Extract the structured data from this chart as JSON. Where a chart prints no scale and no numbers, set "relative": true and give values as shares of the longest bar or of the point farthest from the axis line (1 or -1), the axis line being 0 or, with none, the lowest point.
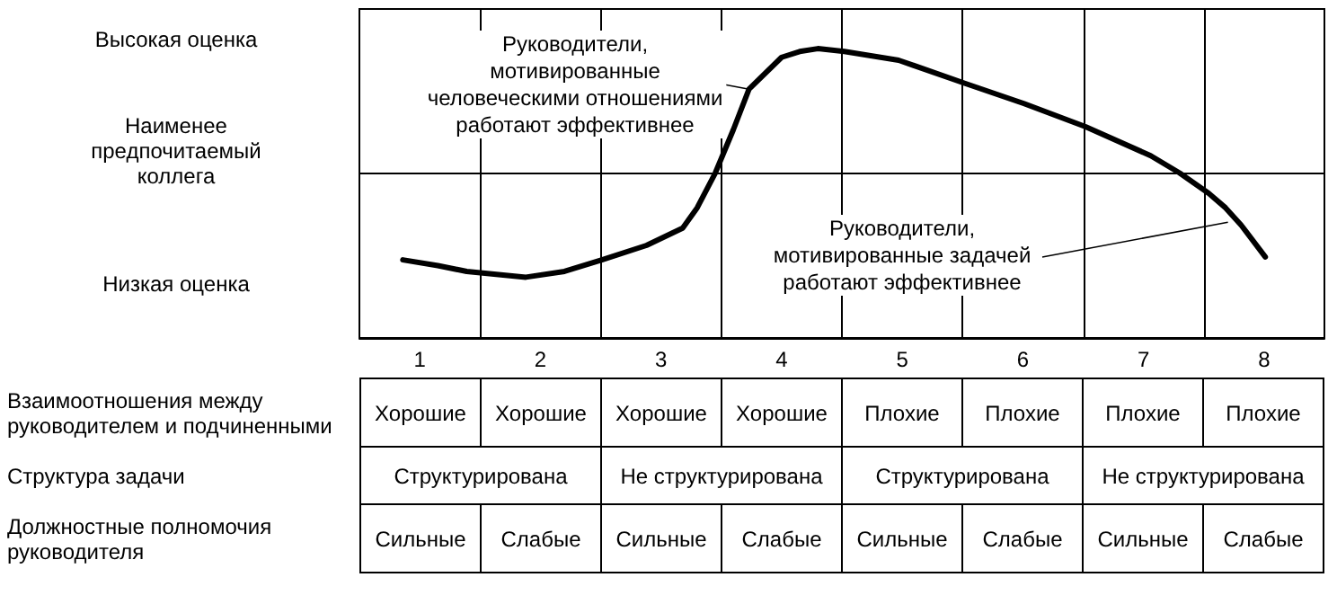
{
  "chart_data": {
    "type": "line",
    "relative": true,
    "xlim": [
      0.5,
      8.5
    ],
    "xticks": [
      1,
      2,
      3,
      4,
      5,
      6,
      7,
      8,
      {
        "value": 1.5,
        "label": null
      },
      {
        "value": 2.5,
        "label": null
      },
      {
        "value": 3.5,
        "label": null
      },
      {
        "value": 4.5,
        "label": null
      },
      {
        "value": 5.5,
        "label": null
      },
      {
        "value": 6.5,
        "label": null
      },
      {
        "value": 7.5,
        "label": null
      }
    ],
    "grid": "x",
    "marker": "none",
    "line_style": "solid",
    "series": [
      {
        "color": "#000000",
        "x": [
          0.86,
          1.15,
          1.39,
          1.88,
          2.2,
          2.51,
          2.88,
          3.18,
          3.3,
          3.45,
          3.6,
          3.73,
          4.0,
          4.15,
          4.3,
          4.52,
          4.97,
          5.52,
          6.01,
          6.52,
          7.06,
          7.3,
          7.54,
          7.68,
          7.81,
          8.01
        ],
        "values": [
          0.27,
          0.25,
          0.23,
          0.21,
          0.23,
          0.27,
          0.32,
          0.38,
          0.45,
          0.57,
          0.72,
          0.86,
          0.97,
          0.99,
          1,
          0.99,
          0.96,
          0.88,
          0.81,
          0.73,
          0.63,
          0.57,
          0.5,
          0.45,
          0.39,
          0.28
        ]
      }
    ],
    "ref_lines": [
      {
        "axis": "y",
        "value": 0.57,
        "label": "Наименее предпочитаемый коллега",
        "color": "#000000"
      }
    ],
    "annotations": [
      "Высокая оценка",
      "Низкая оценка",
      {
        "text": "Руководители, мотивированные человеческими отношениями работают эффективнее",
        "x": 3.73,
        "y": 0.86
      },
      {
        "text": "Руководители, мотивированные задачей работают эффективнее",
        "x": 7.7,
        "y": 0.4
      },
      "Взаимоотношения между руководителем и подчиненными",
      "Хорошие",
      "Хорошие",
      "Хорошие",
      "Хорошие",
      "Плохие",
      "Плохие",
      "Плохие",
      "Плохие",
      "Структура задачи",
      "Структурирована",
      "Не структурирована",
      "Структурирована",
      "Не структурирована",
      "Должностные полномочия руководителя",
      "Сильные",
      "Слабые",
      "Сильные",
      "Слабые",
      "Сильные",
      "Слабые",
      "Сильные",
      "Слабые"
    ]
  }
}
